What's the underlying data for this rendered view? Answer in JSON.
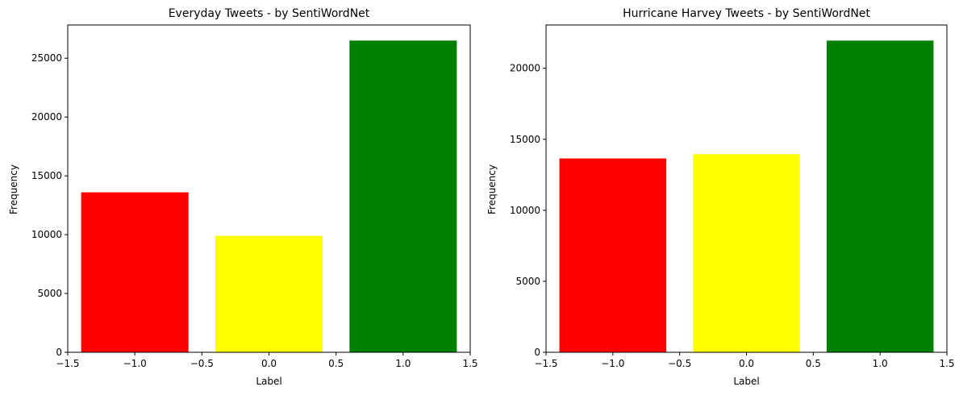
{
  "chart_data": [
    {
      "type": "bar",
      "title": "Everyday Tweets - by SentiWordNet",
      "xlabel": "Label",
      "ylabel": "Frequency",
      "x": [
        -1,
        0,
        1
      ],
      "values": [
        13600,
        9900,
        26500
      ],
      "bar_width": 0.8,
      "colors": [
        "#ff0000",
        "#ffff00",
        "#008000"
      ],
      "xlim": [
        -1.5,
        1.5
      ],
      "ylim": [
        0,
        27825
      ],
      "xticks": [
        -1.5,
        -1.0,
        -0.5,
        0.0,
        0.5,
        1.0,
        1.5
      ],
      "xtick_labels": [
        "−1.5",
        "−1.0",
        "−0.5",
        "0.0",
        "0.5",
        "1.0",
        "1.5"
      ],
      "yticks": [
        0,
        5000,
        10000,
        15000,
        20000,
        25000
      ],
      "ytick_labels": [
        "0",
        "5000",
        "10000",
        "15000",
        "20000",
        "25000"
      ],
      "grid": false,
      "legend": false
    },
    {
      "type": "bar",
      "title": "Hurricane Harvey Tweets - by SentiWordNet",
      "xlabel": "Label",
      "ylabel": "Frequency",
      "x": [
        -1,
        0,
        1
      ],
      "values": [
        13650,
        13950,
        21950
      ],
      "bar_width": 0.8,
      "colors": [
        "#ff0000",
        "#ffff00",
        "#008000"
      ],
      "xlim": [
        -1.5,
        1.5
      ],
      "ylim": [
        0,
        23050
      ],
      "xticks": [
        -1.5,
        -1.0,
        -0.5,
        0.0,
        0.5,
        1.0,
        1.5
      ],
      "xtick_labels": [
        "−1.5",
        "−1.0",
        "−0.5",
        "0.0",
        "0.5",
        "1.0",
        "1.5"
      ],
      "yticks": [
        0,
        5000,
        10000,
        15000,
        20000
      ],
      "ytick_labels": [
        "0",
        "5000",
        "10000",
        "15000",
        "20000"
      ],
      "grid": false,
      "legend": false
    }
  ]
}
